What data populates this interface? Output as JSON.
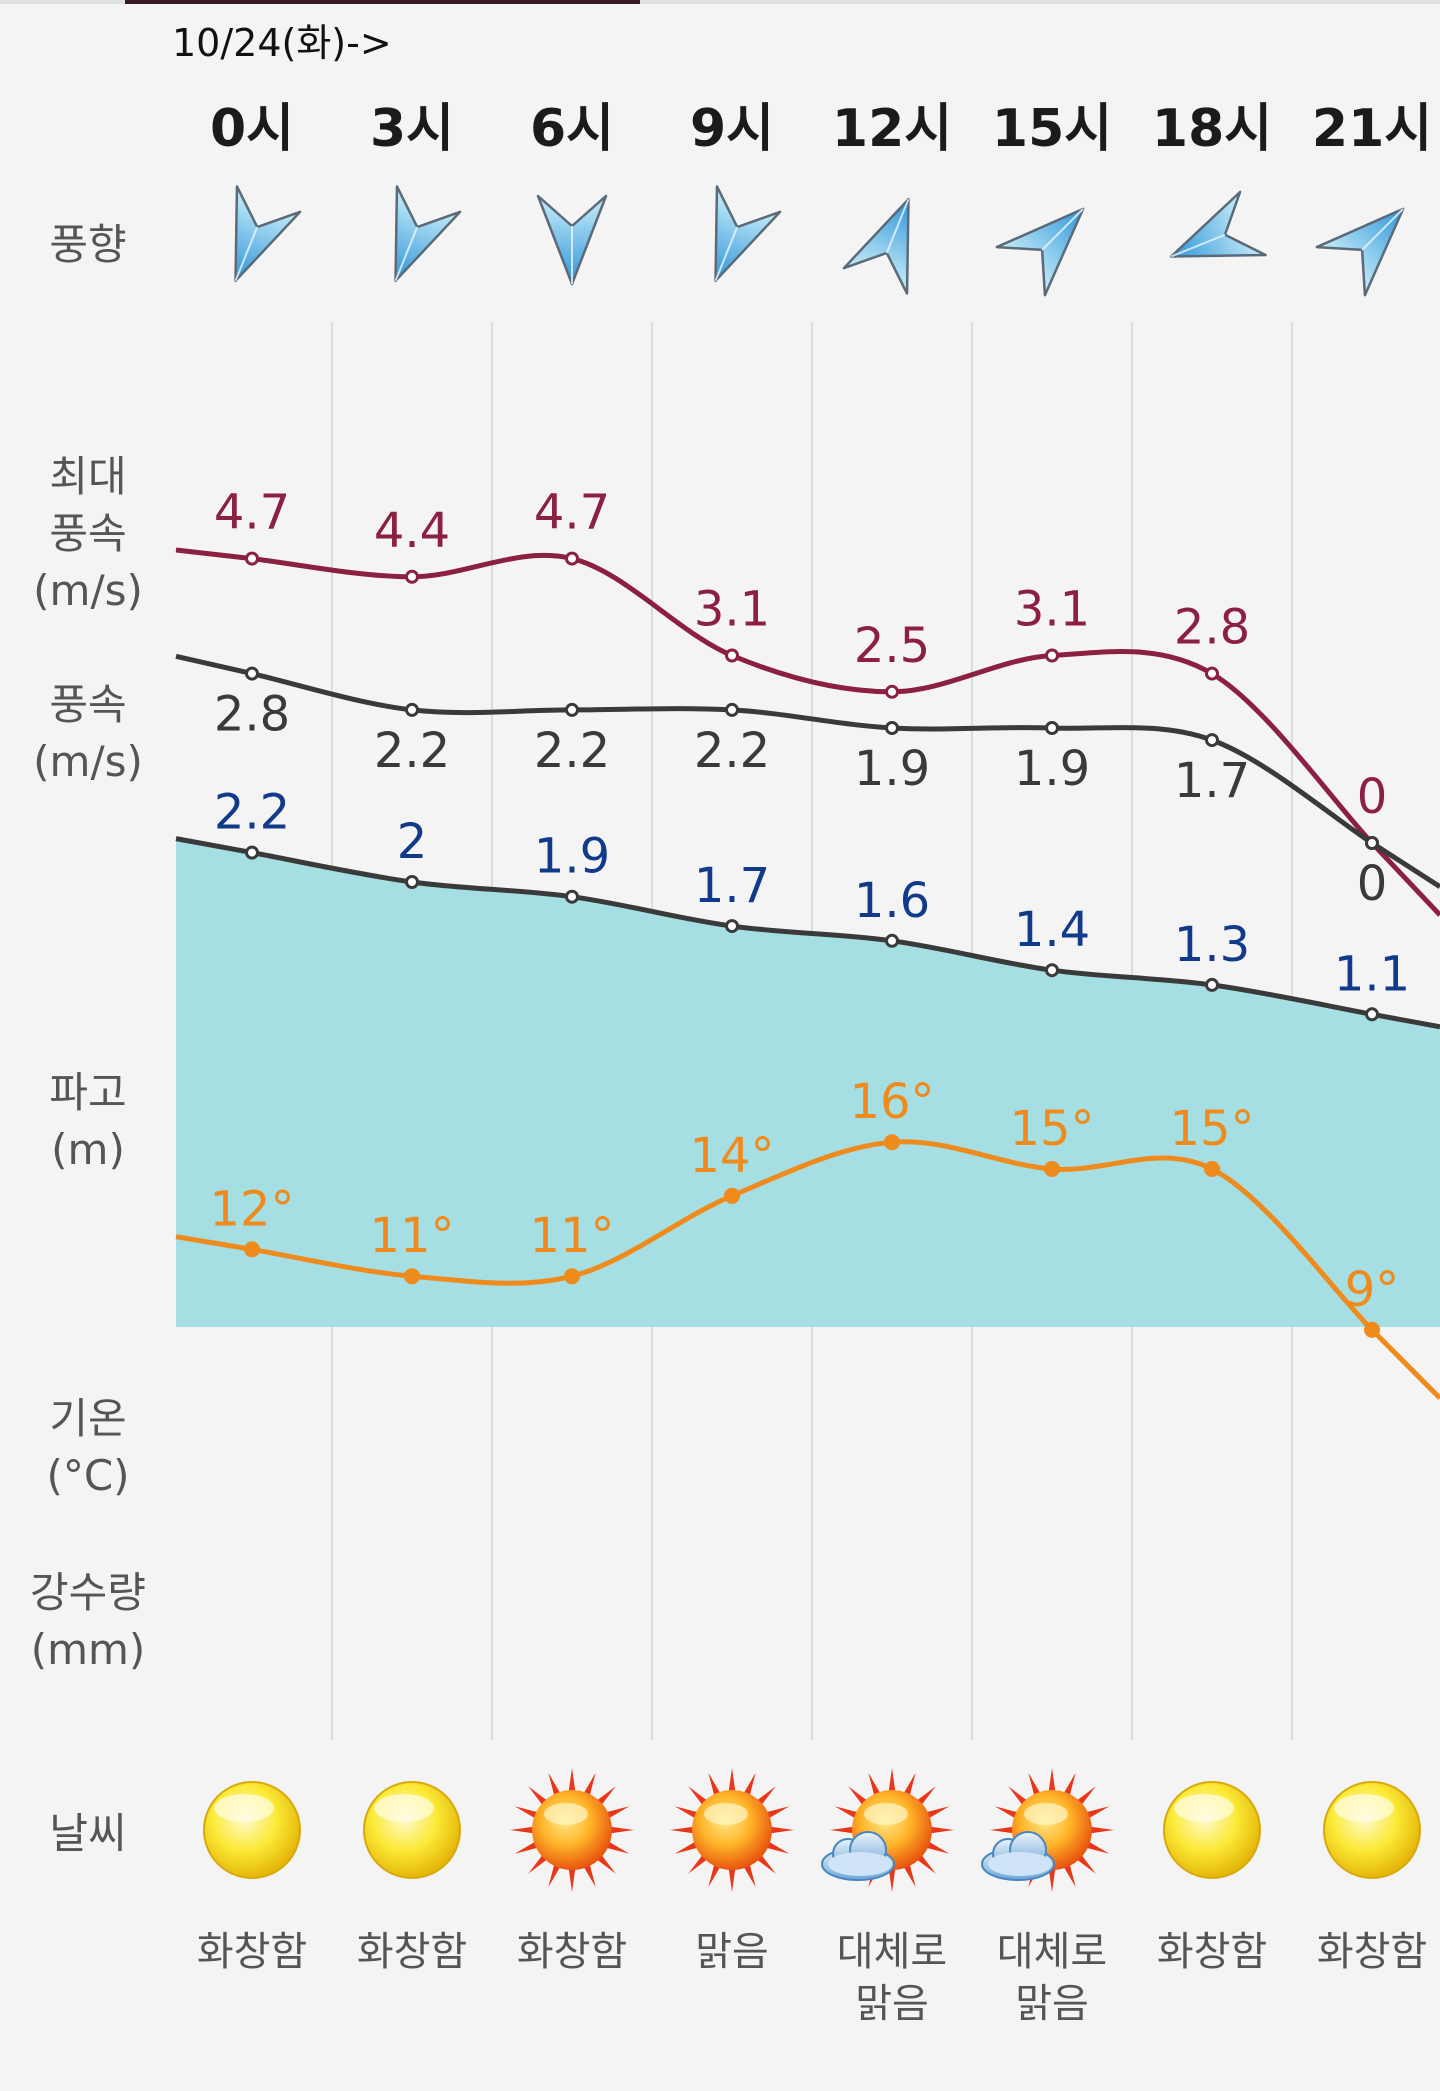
{
  "date_label": "10/24(화)->",
  "row_labels": {
    "wind_dir": "풍향",
    "max_wind": "최대\n풍속\n(m/s)",
    "wind": "풍속\n(m/s)",
    "wave": "파고\n(m)",
    "temp": "기온\n(°C)",
    "rain": "강수량\n(mm)",
    "weather": "날씨"
  },
  "chart_data": {
    "type": "line",
    "categories": [
      "0시",
      "3시",
      "6시",
      "9시",
      "12시",
      "15시",
      "18시",
      "21시"
    ],
    "series": [
      {
        "name": "최대풍속",
        "unit": "m/s",
        "color": "#8b2040",
        "values": [
          4.7,
          4.4,
          4.7,
          3.1,
          2.5,
          3.1,
          2.8,
          0
        ],
        "labels": [
          "4.7",
          "4.4",
          "4.7",
          "3.1",
          "2.5",
          "3.1",
          "2.8",
          "0"
        ]
      },
      {
        "name": "풍속",
        "unit": "m/s",
        "color": "#3a3a3a",
        "values": [
          2.8,
          2.2,
          2.2,
          2.2,
          1.9,
          1.9,
          1.7,
          0
        ],
        "labels": [
          "2.8",
          "2.2",
          "2.2",
          "2.2",
          "1.9",
          "1.9",
          "1.7",
          "0"
        ]
      },
      {
        "name": "파고",
        "unit": "m",
        "color": "#3a3a3a",
        "fill": "#a6dfe3",
        "label_color": "#123a8a",
        "values": [
          2.2,
          2,
          1.9,
          1.7,
          1.6,
          1.4,
          1.3,
          1.1
        ],
        "labels": [
          "2.2",
          "2",
          "1.9",
          "1.7",
          "1.6",
          "1.4",
          "1.3",
          "1.1"
        ]
      },
      {
        "name": "기온",
        "unit": "°C",
        "color": "#ef8a1c",
        "values": [
          12,
          11,
          11,
          14,
          16,
          15,
          15,
          9
        ],
        "labels": [
          "12°",
          "11°",
          "11°",
          "14°",
          "16°",
          "15°",
          "15°",
          "9°"
        ]
      }
    ],
    "wind_direction": [
      "north-northeast",
      "north-northeast",
      "north",
      "north-northeast",
      "south-southwest",
      "southwest",
      "east-northeast",
      "southwest"
    ],
    "weather": [
      {
        "icon": "sun-plain-icon",
        "desc": "화창함"
      },
      {
        "icon": "sun-plain-icon",
        "desc": "화창함"
      },
      {
        "icon": "sun-rays-icon",
        "desc": "화창함"
      },
      {
        "icon": "sun-rays-icon",
        "desc": "맑음"
      },
      {
        "icon": "sun-cloud-icon",
        "desc": "대체로\n맑음"
      },
      {
        "icon": "sun-cloud-icon",
        "desc": "대체로\n맑음"
      },
      {
        "icon": "sun-plain-icon",
        "desc": "화창함"
      },
      {
        "icon": "sun-plain-icon",
        "desc": "화창함"
      }
    ]
  }
}
